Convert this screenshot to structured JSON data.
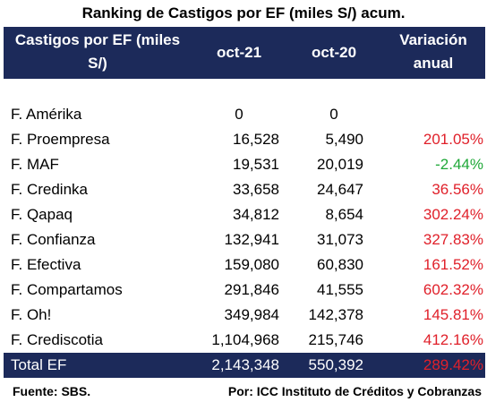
{
  "title": "Ranking de Castigos por EF (miles S/) acum.",
  "header": {
    "col1_line1": "Castigos por EF (miles",
    "col1_line2": "S/)",
    "col2": "oct-21",
    "col3": "oct-20",
    "col4_line1": "Variación",
    "col4_line2": "anual"
  },
  "colors": {
    "header_bg": "#1c2a5a",
    "negative_var": "#e0202a",
    "positive_var": "#1fa838",
    "total_var": "#e0202a"
  },
  "rows": [
    {
      "name": "F. Amérika",
      "oct21": "0",
      "oct20": "0",
      "var": "",
      "var_color": ""
    },
    {
      "name": "F. Proempresa",
      "oct21": "16,528",
      "oct20": "5,490",
      "var": "201.05%",
      "var_color": "#e0202a"
    },
    {
      "name": "F. MAF",
      "oct21": "19,531",
      "oct20": "20,019",
      "var": "-2.44%",
      "var_color": "#1fa838"
    },
    {
      "name": "F. Credinka",
      "oct21": "33,658",
      "oct20": "24,647",
      "var": "36.56%",
      "var_color": "#e0202a"
    },
    {
      "name": "F. Qapaq",
      "oct21": "34,812",
      "oct20": "8,654",
      "var": "302.24%",
      "var_color": "#e0202a"
    },
    {
      "name": "F. Confianza",
      "oct21": "132,941",
      "oct20": "31,073",
      "var": "327.83%",
      "var_color": "#e0202a"
    },
    {
      "name": "F. Efectiva",
      "oct21": "159,080",
      "oct20": "60,830",
      "var": "161.52%",
      "var_color": "#e0202a"
    },
    {
      "name": "F. Compartamos",
      "oct21": "291,846",
      "oct20": "41,555",
      "var": "602.32%",
      "var_color": "#e0202a"
    },
    {
      "name": "F. Oh!",
      "oct21": "349,984",
      "oct20": "142,378",
      "var": "145.81%",
      "var_color": "#e0202a"
    },
    {
      "name": "F. Crediscotia",
      "oct21": "1,104,968",
      "oct20": "215,746",
      "var": "412.16%",
      "var_color": "#e0202a"
    }
  ],
  "total": {
    "name": "Total EF",
    "oct21": "2,143,348",
    "oct20": "550,392",
    "var": "289.42%"
  },
  "footer": {
    "source": "Fuente: SBS.",
    "by": "Por: ICC Instituto de Créditos y Cobranzas"
  }
}
